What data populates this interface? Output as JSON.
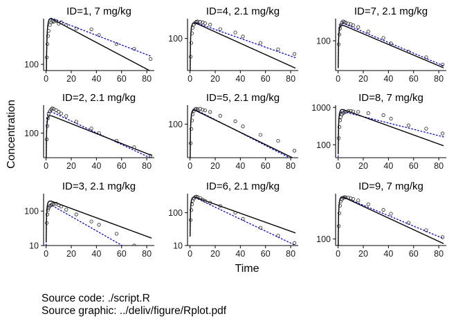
{
  "chart_data": {
    "type": "line",
    "layout": "3x3 facet grid",
    "xlabel": "Time",
    "ylabel": "Concentration",
    "y_scale": "log",
    "grid": false,
    "x_ticks": [
      0,
      20,
      40,
      60,
      80
    ],
    "x_range": [
      -2,
      86
    ],
    "series_styles": {
      "observed": {
        "marker": "open circle",
        "color": "#000000"
      },
      "individual_fit": {
        "line": "dotted",
        "color": "#0000cc"
      },
      "population_fit": {
        "line": "solid",
        "color": "#000000"
      }
    },
    "panels": [
      {
        "title": "ID=1, 7 mg/kg",
        "ylim": [
          85,
          330
        ],
        "y_ticks": [
          100
        ],
        "population": {
          "C0": 350,
          "k": 0.0174,
          "ka": 1.2
        },
        "individual": {
          "C0": 350,
          "k": 0.0126,
          "ka": 1.2
        },
        "observed": [
          [
            0.5,
            120
          ],
          [
            1,
            170
          ],
          [
            1.5,
            210
          ],
          [
            2,
            240
          ],
          [
            3,
            280
          ],
          [
            4,
            300
          ],
          [
            5,
            310
          ],
          [
            6,
            305
          ],
          [
            8,
            310
          ],
          [
            10,
            290
          ],
          [
            12,
            300
          ],
          [
            16,
            280
          ],
          [
            24,
            255
          ],
          [
            36,
            250
          ],
          [
            42,
            215
          ],
          [
            56,
            170
          ],
          [
            70,
            150
          ],
          [
            83,
            115
          ]
        ]
      },
      {
        "title": "ID=4, 2.1 mg/kg",
        "ylim": [
          20,
          270
        ],
        "y_ticks": [
          100
        ],
        "population": {
          "C0": 240,
          "k": 0.0285,
          "ka": 1.2
        },
        "individual": {
          "C0": 240,
          "k": 0.0222,
          "ka": 1.2
        },
        "observed": [
          [
            0.5,
            40
          ],
          [
            1,
            80
          ],
          [
            1.5,
            130
          ],
          [
            2,
            170
          ],
          [
            3,
            200
          ],
          [
            4,
            220
          ],
          [
            5,
            230
          ],
          [
            6,
            235
          ],
          [
            8,
            230
          ],
          [
            10,
            225
          ],
          [
            12,
            215
          ],
          [
            16,
            200
          ],
          [
            24,
            160
          ],
          [
            36,
            135
          ],
          [
            42,
            110
          ],
          [
            56,
            80
          ],
          [
            70,
            58
          ],
          [
            83,
            46
          ]
        ]
      },
      {
        "title": "ID=7, 2.1 mg/kg",
        "ylim": [
          15,
          410
        ],
        "y_ticks": [
          100
        ],
        "population": {
          "C0": 300,
          "k": 0.034,
          "ka": 1.2
        },
        "individual": {
          "C0": 340,
          "k": 0.034,
          "ka": 1.2
        },
        "observed": [
          [
            0.5,
            80
          ],
          [
            1,
            150
          ],
          [
            1.5,
            220
          ],
          [
            2,
            270
          ],
          [
            3,
            320
          ],
          [
            4,
            345
          ],
          [
            5,
            330
          ],
          [
            6,
            320
          ],
          [
            8,
            300
          ],
          [
            10,
            290
          ],
          [
            12,
            270
          ],
          [
            16,
            240
          ],
          [
            24,
            180
          ],
          [
            36,
            120
          ],
          [
            42,
            85
          ],
          [
            56,
            50
          ],
          [
            70,
            35
          ],
          [
            83,
            22
          ]
        ]
      },
      {
        "title": "ID=2, 2.1 mg/kg",
        "ylim": [
          25,
          480
        ],
        "y_ticks": [
          100
        ],
        "population": {
          "C0": 290,
          "k": 0.028,
          "ka": 1.2
        },
        "individual": {
          "C0": 370,
          "k": 0.033,
          "ka": 1.2
        },
        "observed": [
          [
            0.5,
            70
          ],
          [
            1,
            150
          ],
          [
            1.5,
            230
          ],
          [
            2,
            300
          ],
          [
            3,
            340
          ],
          [
            4,
            380
          ],
          [
            5,
            400
          ],
          [
            6,
            390
          ],
          [
            8,
            360
          ],
          [
            10,
            330
          ],
          [
            12,
            300
          ],
          [
            16,
            260
          ],
          [
            24,
            190
          ],
          [
            36,
            130
          ],
          [
            42,
            100
          ],
          [
            56,
            65
          ],
          [
            70,
            45
          ],
          [
            83,
            28
          ]
        ]
      },
      {
        "title": "ID=5, 2.1 mg/kg",
        "ylim": [
          20,
          250
        ],
        "y_ticks": [
          100
        ],
        "population": {
          "C0": 215,
          "k": 0.0295,
          "ka": 1.2
        },
        "individual": {
          "C0": 225,
          "k": 0.031,
          "ka": 1.2
        },
        "observed": [
          [
            0.5,
            40
          ],
          [
            1,
            80
          ],
          [
            1.5,
            120
          ],
          [
            2,
            160
          ],
          [
            3,
            190
          ],
          [
            4,
            205
          ],
          [
            5,
            210
          ],
          [
            6,
            205
          ],
          [
            8,
            210
          ],
          [
            10,
            200
          ],
          [
            12,
            195
          ],
          [
            16,
            180
          ],
          [
            24,
            150
          ],
          [
            36,
            115
          ],
          [
            42,
            90
          ],
          [
            56,
            60
          ],
          [
            70,
            45
          ],
          [
            83,
            28
          ]
        ]
      },
      {
        "title": "ID=8, 7 mg/kg",
        "ylim": [
          45,
          1150
        ],
        "y_ticks": [
          100,
          1000
        ],
        "population": {
          "C0": 960,
          "k": 0.028,
          "ka": 1.2
        },
        "individual": {
          "C0": 820,
          "k": 0.0195,
          "ka": 1.2
        },
        "observed": [
          [
            0.5,
            150
          ],
          [
            1,
            300
          ],
          [
            1.5,
            450
          ],
          [
            2,
            550
          ],
          [
            3,
            650
          ],
          [
            4,
            700
          ],
          [
            5,
            750
          ],
          [
            6,
            760
          ],
          [
            8,
            800
          ],
          [
            10,
            800
          ],
          [
            12,
            780
          ],
          [
            16,
            760
          ],
          [
            24,
            700
          ],
          [
            36,
            620
          ],
          [
            42,
            500
          ],
          [
            56,
            330
          ],
          [
            70,
            270
          ],
          [
            83,
            200
          ]
        ]
      },
      {
        "title": "ID=3, 2.1 mg/kg",
        "ylim": [
          10,
          320
        ],
        "y_ticks": [
          10,
          100
        ],
        "population": {
          "C0": 215,
          "k": 0.031,
          "ka": 1.2
        },
        "individual": {
          "C0": 175,
          "k": 0.048,
          "ka": 1.2
        },
        "observed": [
          [
            0.5,
            45
          ],
          [
            1,
            80
          ],
          [
            1.5,
            110
          ],
          [
            2,
            125
          ],
          [
            3,
            140
          ],
          [
            4,
            150
          ],
          [
            5,
            160
          ],
          [
            6,
            155
          ],
          [
            8,
            165
          ],
          [
            10,
            150
          ],
          [
            12,
            135
          ],
          [
            16,
            110
          ],
          [
            24,
            80
          ],
          [
            36,
            50
          ],
          [
            42,
            40
          ],
          [
            56,
            22
          ],
          [
            70,
            10
          ],
          [
            83,
            9
          ]
        ]
      },
      {
        "title": "ID=6, 2.1 mg/kg",
        "ylim": [
          10,
          380
        ],
        "y_ticks": [
          10,
          100
        ],
        "population": {
          "C0": 330,
          "k": 0.0315,
          "ka": 1.2
        },
        "individual": {
          "C0": 330,
          "k": 0.042,
          "ka": 1.2
        },
        "observed": [
          [
            0.5,
            60
          ],
          [
            1,
            120
          ],
          [
            1.5,
            180
          ],
          [
            2,
            230
          ],
          [
            3,
            270
          ],
          [
            4,
            300
          ],
          [
            5,
            310
          ],
          [
            6,
            300
          ],
          [
            8,
            280
          ],
          [
            10,
            250
          ],
          [
            12,
            230
          ],
          [
            16,
            200
          ],
          [
            24,
            160
          ],
          [
            36,
            100
          ],
          [
            42,
            65
          ],
          [
            56,
            35
          ],
          [
            70,
            20
          ],
          [
            83,
            12
          ]
        ]
      },
      {
        "title": "ID=9, 7 mg/kg",
        "ylim": [
          70,
          1150
        ],
        "y_ticks": [
          100
        ],
        "population": {
          "C0": 1060,
          "k": 0.0315,
          "ka": 1.2
        },
        "individual": {
          "C0": 1060,
          "k": 0.0282,
          "ka": 1.2
        },
        "observed": [
          [
            0.5,
            200
          ],
          [
            1,
            400
          ],
          [
            1.5,
            600
          ],
          [
            2,
            750
          ],
          [
            3,
            850
          ],
          [
            4,
            920
          ],
          [
            5,
            950
          ],
          [
            6,
            940
          ],
          [
            8,
            930
          ],
          [
            10,
            900
          ],
          [
            12,
            860
          ],
          [
            16,
            800
          ],
          [
            24,
            650
          ],
          [
            36,
            480
          ],
          [
            42,
            390
          ],
          [
            56,
            240
          ],
          [
            70,
            160
          ],
          [
            83,
            110
          ]
        ]
      }
    ]
  },
  "caption": {
    "line1": "Source code: ./script.R",
    "line2": "Source graphic: ../deliv/figure/Rplot.pdf"
  }
}
